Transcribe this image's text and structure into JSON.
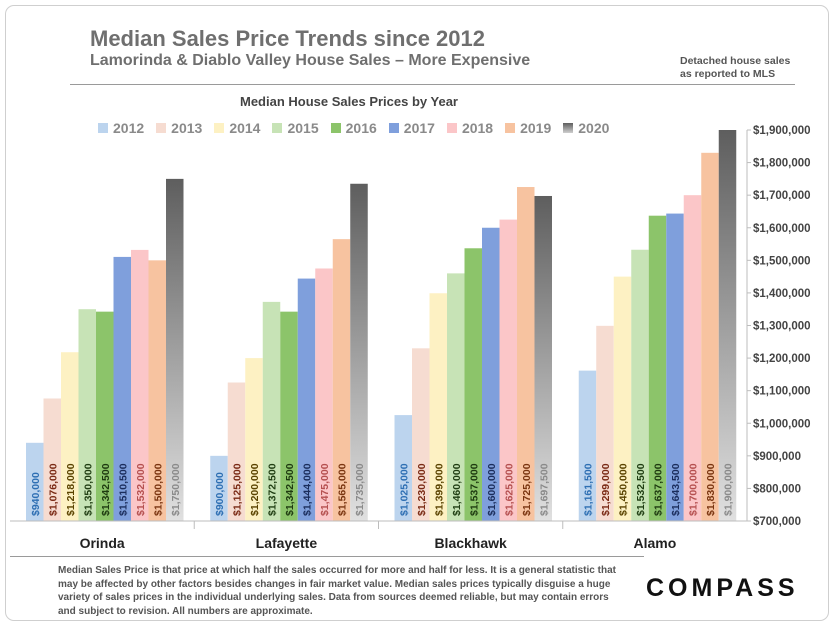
{
  "header": {
    "title": "Median Sales Price Trends since 2012",
    "subtitle": "Lamorinda & Diablo Valley House Sales – More Expensive",
    "source_note_line1": "Detached house sales",
    "source_note_line2": "as reported to MLS"
  },
  "footer": {
    "disclaimer": "Median Sales Price is that price at which half the sales occurred for more and half for less. It is a general statistic that may be affected by other factors besides changes in fair market value. Median sales prices typically disguise a huge variety of sales prices in the individual underlying sales. Data from sources deemed reliable, but may contain errors and subject to revision.  All numbers are approximate.",
    "logo": "COMPASS"
  },
  "chart_data": {
    "type": "bar",
    "title": "Median House Sales Prices by Year",
    "categories": [
      "Orinda",
      "Lafayette",
      "Blackhawk",
      "Alamo"
    ],
    "series": [
      {
        "name": "2012",
        "color": "#bcd4ee",
        "label_color": "#2e6fb3",
        "values": [
          940000,
          900000,
          1025000,
          1161500
        ],
        "labels": [
          "$940,000",
          "$900,000",
          "$1,025,000",
          "$1,161,500"
        ]
      },
      {
        "name": "2013",
        "color": "#f6dcd1",
        "label_color": "#7a2a15",
        "values": [
          1076000,
          1125000,
          1230000,
          1299000
        ],
        "labels": [
          "$1,076,000",
          "$1,125,000",
          "$1,230,000",
          "$1,299,000"
        ]
      },
      {
        "name": "2014",
        "color": "#fdf1c3",
        "label_color": "#5a4300",
        "values": [
          1218000,
          1200000,
          1399000,
          1450000
        ],
        "labels": [
          "$1,218,000",
          "$1,200,000",
          "$1,399,000",
          "$1,450,000"
        ]
      },
      {
        "name": "2015",
        "color": "#c7e3b6",
        "label_color": "#1f3d12",
        "values": [
          1350000,
          1372500,
          1460000,
          1532500
        ],
        "labels": [
          "$1,350,000",
          "$1,372,500",
          "$1,460,000",
          "$1,532,500"
        ]
      },
      {
        "name": "2016",
        "color": "#8cc46a",
        "label_color": "#1e3a10",
        "values": [
          1342500,
          1342500,
          1537000,
          1637000
        ],
        "labels": [
          "$1,342,500",
          "$1,342,500",
          "$1,537,000",
          "$1,637,000"
        ]
      },
      {
        "name": "2017",
        "color": "#7f9fdc",
        "label_color": "#1b2d5c",
        "values": [
          1510500,
          1444000,
          1600000,
          1643500
        ],
        "labels": [
          "$1,510,500",
          "$1,444,000",
          "$1,600,000",
          "$1,643,500"
        ]
      },
      {
        "name": "2018",
        "color": "#fbc6c8",
        "label_color": "#b55050",
        "values": [
          1532000,
          1475000,
          1625000,
          1700000
        ],
        "labels": [
          "$1,532,000",
          "$1,475,000",
          "$1,625,000",
          "$1,700,000"
        ]
      },
      {
        "name": "2019",
        "color": "#f7c3a0",
        "label_color": "#7a3510",
        "values": [
          1500000,
          1565000,
          1725000,
          1830000
        ],
        "labels": [
          "$1,500,000",
          "$1,565,000",
          "$1,725,000",
          "$1,830,000"
        ]
      },
      {
        "name": "2020",
        "color": "#6b6b6b",
        "label_color": "#8a8a8a",
        "values": [
          1750000,
          1735000,
          1697500,
          1900000
        ],
        "labels": [
          "$1,750,000",
          "$1,735,000",
          "$1,697,500",
          "$1,900,000"
        ]
      }
    ],
    "ylim": [
      700000,
      1900000
    ],
    "y_ticks": [
      {
        "value": 700000,
        "label": "$700,000"
      },
      {
        "value": 800000,
        "label": "$800,000"
      },
      {
        "value": 900000,
        "label": "$900,000"
      },
      {
        "value": 1000000,
        "label": "$1,000,000"
      },
      {
        "value": 1100000,
        "label": "$1,100,000"
      },
      {
        "value": 1200000,
        "label": "$1,200,000"
      },
      {
        "value": 1300000,
        "label": "$1,300,000"
      },
      {
        "value": 1400000,
        "label": "$1,400,000"
      },
      {
        "value": 1500000,
        "label": "$1,500,000"
      },
      {
        "value": 1600000,
        "label": "$1,600,000"
      },
      {
        "value": 1700000,
        "label": "$1,700,000"
      },
      {
        "value": 1800000,
        "label": "$1,800,000"
      },
      {
        "value": 1900000,
        "label": "$1,900,000"
      }
    ],
    "y_axis_side": "right",
    "legend_position": "top",
    "grid": false
  }
}
